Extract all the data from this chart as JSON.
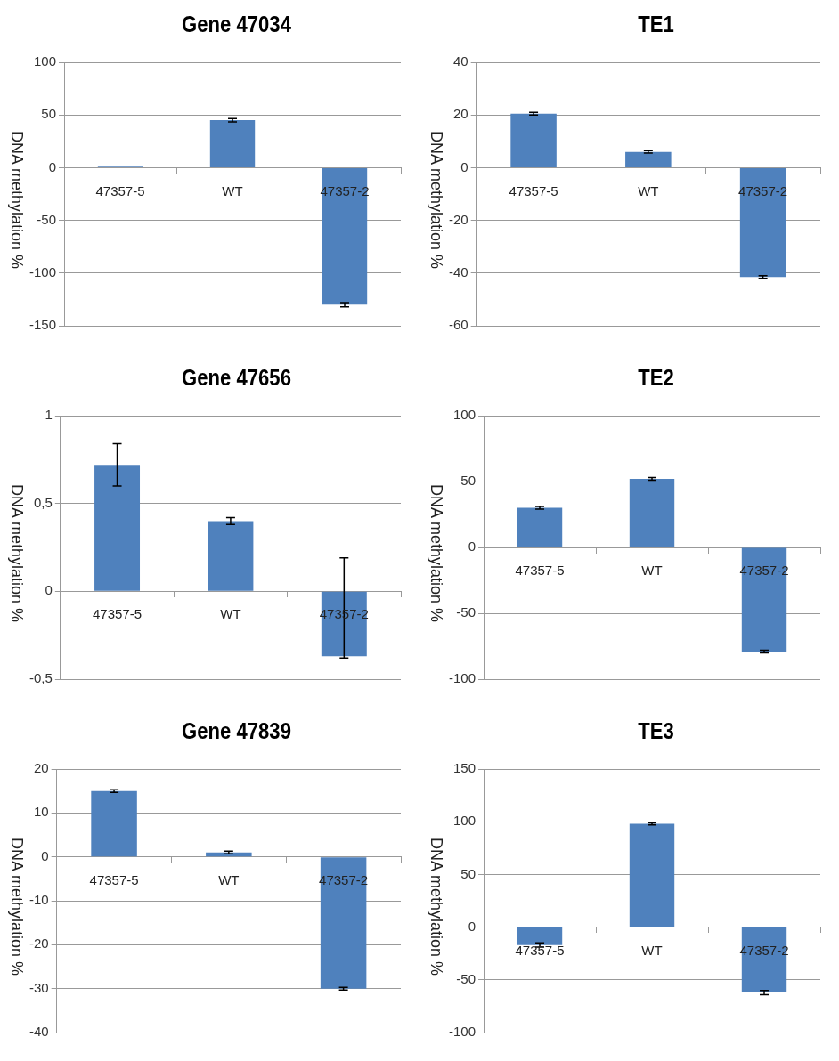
{
  "chart_data": [
    {
      "type": "bar",
      "title": "Gene 47034",
      "ylabel": "DNA methylation %",
      "categories": [
        "47357-5",
        "WT",
        "47357-2"
      ],
      "values": [
        1,
        45,
        -130
      ],
      "errors": [
        null,
        1.5,
        2
      ],
      "color": "#4f81bd",
      "ylim": [
        -150,
        100
      ],
      "yticks": [
        -150,
        -100,
        -50,
        0,
        50,
        100
      ],
      "grid": "y"
    },
    {
      "type": "bar",
      "title": "TE1",
      "ylabel": "DNA methylation %",
      "categories": [
        "47357-5",
        "WT",
        "47357-2"
      ],
      "values": [
        20.5,
        6,
        -41.5
      ],
      "errors": [
        0.5,
        0.5,
        0.5
      ],
      "color": "#4f81bd",
      "ylim": [
        -60,
        40
      ],
      "yticks": [
        -60,
        -40,
        -20,
        0,
        20,
        40
      ],
      "grid": "y"
    },
    {
      "type": "bar",
      "title": "Gene 47656",
      "ylabel": "DNA methylation %",
      "categories": [
        "47357-5",
        "WT",
        "47357-2"
      ],
      "values": [
        0.72,
        0.4,
        -0.37
      ],
      "errors": [
        0.12,
        0.02,
        [
          -0.38,
          0.19
        ]
      ],
      "color": "#4f81bd",
      "ylim": [
        -0.5,
        1
      ],
      "yticks": [
        {
          "value": -0.5,
          "label": "-0,5"
        },
        0,
        {
          "value": 0.5,
          "label": "0,5"
        },
        1
      ],
      "grid": "y"
    },
    {
      "type": "bar",
      "title": "TE2",
      "ylabel": "DNA methylation %",
      "categories": [
        "47357-5",
        "WT",
        "47357-2"
      ],
      "values": [
        30,
        52,
        -79
      ],
      "errors": [
        1,
        1,
        1
      ],
      "color": "#4f81bd",
      "ylim": [
        -100,
        100
      ],
      "yticks": [
        -100,
        -50,
        0,
        50,
        100
      ],
      "grid": "y"
    },
    {
      "type": "bar",
      "title": "Gene 47839",
      "ylabel": "DNA methylation %",
      "categories": [
        "47357-5",
        "WT",
        "47357-2"
      ],
      "values": [
        15,
        1,
        -30
      ],
      "errors": [
        0.3,
        0.3,
        0.3
      ],
      "color": "#4f81bd",
      "ylim": [
        -40,
        20
      ],
      "yticks": [
        -40,
        -30,
        -20,
        -10,
        0,
        10,
        20
      ],
      "grid": "y"
    },
    {
      "type": "bar",
      "title": "TE3",
      "ylabel": "DNA methylation %",
      "categories": [
        "47357-5",
        "WT",
        "47357-2"
      ],
      "values": [
        -17,
        98,
        -62
      ],
      "errors": [
        2,
        1,
        2
      ],
      "color": "#4f81bd",
      "ylim": [
        -100,
        150
      ],
      "yticks": [
        -100,
        -50,
        0,
        50,
        100,
        150
      ],
      "grid": "y"
    }
  ]
}
